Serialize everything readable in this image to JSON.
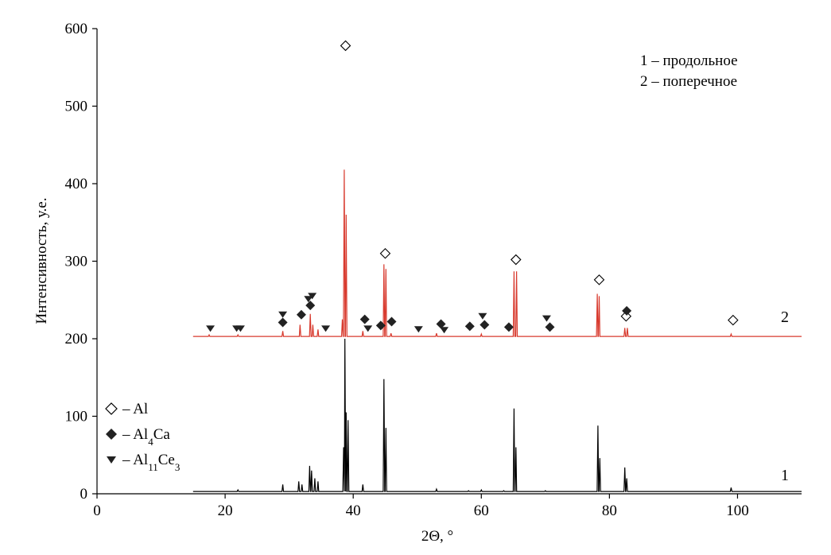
{
  "chart_data": {
    "type": "line",
    "xlabel": "2Θ, °",
    "ylabel": "Интенсивность, у.е.",
    "xlim": [
      0,
      110
    ],
    "ylim": [
      0,
      600
    ],
    "x_ticks": [
      0,
      20,
      40,
      60,
      80,
      100
    ],
    "y_ticks": [
      0,
      100,
      200,
      300,
      400,
      500,
      600
    ],
    "grid": false,
    "series": [
      {
        "name": "1 – продольное",
        "curve_label": "1",
        "color": "#000000",
        "baseline": 3,
        "x_start": 15,
        "x_end": 110,
        "peaks": [
          {
            "x": 22.0,
            "y": 5
          },
          {
            "x": 29.0,
            "y": 12
          },
          {
            "x": 31.5,
            "y": 16
          },
          {
            "x": 32.0,
            "y": 12
          },
          {
            "x": 33.2,
            "y": 36
          },
          {
            "x": 33.5,
            "y": 30
          },
          {
            "x": 34.0,
            "y": 20
          },
          {
            "x": 34.5,
            "y": 16
          },
          {
            "x": 38.5,
            "y": 60
          },
          {
            "x": 38.7,
            "y": 200
          },
          {
            "x": 38.9,
            "y": 105
          },
          {
            "x": 39.2,
            "y": 95
          },
          {
            "x": 41.5,
            "y": 12
          },
          {
            "x": 44.8,
            "y": 148
          },
          {
            "x": 45.1,
            "y": 85
          },
          {
            "x": 53.0,
            "y": 6
          },
          {
            "x": 58.0,
            "y": 4
          },
          {
            "x": 60.0,
            "y": 5
          },
          {
            "x": 63.5,
            "y": 4
          },
          {
            "x": 65.1,
            "y": 110
          },
          {
            "x": 65.4,
            "y": 60
          },
          {
            "x": 70.0,
            "y": 4
          },
          {
            "x": 78.2,
            "y": 88
          },
          {
            "x": 78.5,
            "y": 46
          },
          {
            "x": 82.4,
            "y": 34
          },
          {
            "x": 82.7,
            "y": 20
          },
          {
            "x": 99.0,
            "y": 8
          }
        ]
      },
      {
        "name": "2 – поперечное",
        "curve_label": "2",
        "color": "#d83a2e",
        "baseline": 203,
        "x_start": 15,
        "x_end": 110,
        "peaks": [
          {
            "x": 17.5,
            "y": 205
          },
          {
            "x": 22.0,
            "y": 205
          },
          {
            "x": 29.0,
            "y": 210
          },
          {
            "x": 31.7,
            "y": 218
          },
          {
            "x": 33.3,
            "y": 232
          },
          {
            "x": 33.7,
            "y": 218
          },
          {
            "x": 34.5,
            "y": 212
          },
          {
            "x": 38.3,
            "y": 225
          },
          {
            "x": 38.6,
            "y": 418
          },
          {
            "x": 38.9,
            "y": 360
          },
          {
            "x": 41.5,
            "y": 210
          },
          {
            "x": 44.8,
            "y": 296
          },
          {
            "x": 45.1,
            "y": 290
          },
          {
            "x": 45.9,
            "y": 207
          },
          {
            "x": 53.0,
            "y": 207
          },
          {
            "x": 60.0,
            "y": 206
          },
          {
            "x": 65.1,
            "y": 287
          },
          {
            "x": 65.5,
            "y": 287
          },
          {
            "x": 78.1,
            "y": 258
          },
          {
            "x": 78.4,
            "y": 255
          },
          {
            "x": 82.4,
            "y": 214
          },
          {
            "x": 82.8,
            "y": 214
          },
          {
            "x": 99.0,
            "y": 206
          }
        ]
      }
    ],
    "markers": {
      "Al": [
        [
          38.8,
          578
        ],
        [
          45.0,
          310
        ],
        [
          65.4,
          302
        ],
        [
          78.4,
          276
        ],
        [
          82.6,
          229
        ],
        [
          99.3,
          224
        ]
      ],
      "Al4Ca": [
        [
          29.0,
          221
        ],
        [
          31.9,
          231
        ],
        [
          33.3,
          243
        ],
        [
          41.8,
          225
        ],
        [
          44.3,
          217
        ],
        [
          46.0,
          222
        ],
        [
          53.7,
          219
        ],
        [
          58.2,
          216
        ],
        [
          60.5,
          218
        ],
        [
          64.3,
          215
        ],
        [
          70.7,
          215
        ],
        [
          82.7,
          236
        ]
      ],
      "Al11Ce3": [
        [
          17.7,
          213
        ],
        [
          21.8,
          213
        ],
        [
          22.4,
          213
        ],
        [
          29.0,
          231
        ],
        [
          33.0,
          251
        ],
        [
          33.6,
          255
        ],
        [
          35.7,
          213
        ],
        [
          42.3,
          213
        ],
        [
          50.2,
          212
        ],
        [
          54.2,
          211
        ],
        [
          60.2,
          229
        ],
        [
          70.2,
          226
        ]
      ]
    },
    "legend": {
      "placement": "bottom-left",
      "items": [
        {
          "symbol": "open-diamond",
          "text": "– Al"
        },
        {
          "symbol": "filled-diamond",
          "text": "– Al",
          "sub": "4",
          "suffix": "Ca"
        },
        {
          "symbol": "filled-triangle",
          "text": "– Al",
          "sub": "11",
          "suffix": "Ce",
          "sub2": "3"
        }
      ]
    },
    "series_legend": {
      "placement": "top-right",
      "lines": [
        "1 – продольное",
        "2 – поперечное"
      ]
    }
  }
}
